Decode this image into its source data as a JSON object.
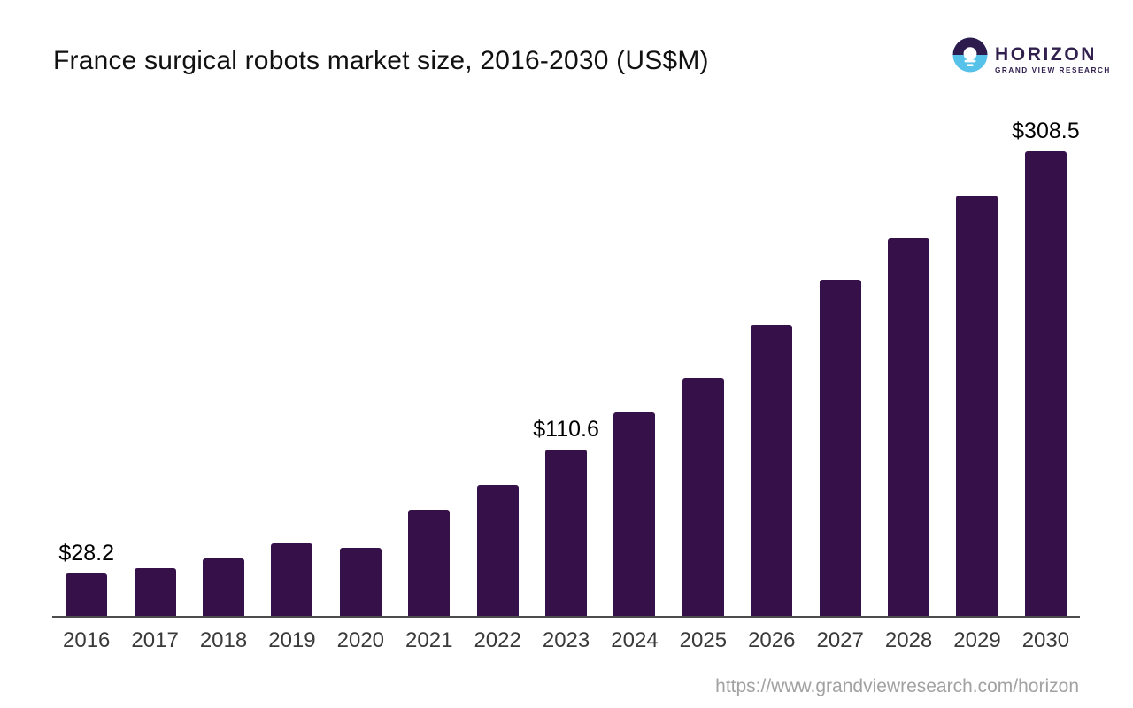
{
  "title": "France surgical robots market size, 2016-2030 (US$M)",
  "logo": {
    "brand": "HORIZON",
    "subbrand": "GRAND VIEW RESEARCH",
    "icon": "horizon-sunset-circle-icon"
  },
  "footer": {
    "url": "https://www.grandviewresearch.com/horizon"
  },
  "colors": {
    "bar": "#361149",
    "logo_dark_purple": "#2e1b4e",
    "logo_light_blue": "#57c2e9",
    "title_text": "#111111",
    "axis_line": "#4c4c4c",
    "tick_label": "#3a3a3a",
    "value_label": "#000000",
    "url_text": "#a2a2a2"
  },
  "chart_data": {
    "type": "bar",
    "title": "France surgical robots market size, 2016-2030 (US$M)",
    "unit": "US$M",
    "xlabel": "",
    "ylabel": "",
    "ylim": [
      0,
      320
    ],
    "grid": false,
    "legend": false,
    "categories": [
      "2016",
      "2017",
      "2018",
      "2019",
      "2020",
      "2021",
      "2022",
      "2023",
      "2024",
      "2025",
      "2026",
      "2027",
      "2028",
      "2029",
      "2030"
    ],
    "values": [
      28.2,
      31.6,
      38.4,
      48.2,
      45.3,
      70.7,
      86.8,
      110.6,
      135.0,
      157.9,
      193.2,
      223.2,
      250.7,
      279.1,
      308.5
    ],
    "data_labels": [
      "$28.2",
      "",
      "",
      "",
      "",
      "",
      "",
      "$110.6",
      "",
      "",
      "",
      "",
      "",
      "",
      "$308.5"
    ],
    "labeled_years": [
      "2016",
      "2023",
      "2030"
    ]
  }
}
